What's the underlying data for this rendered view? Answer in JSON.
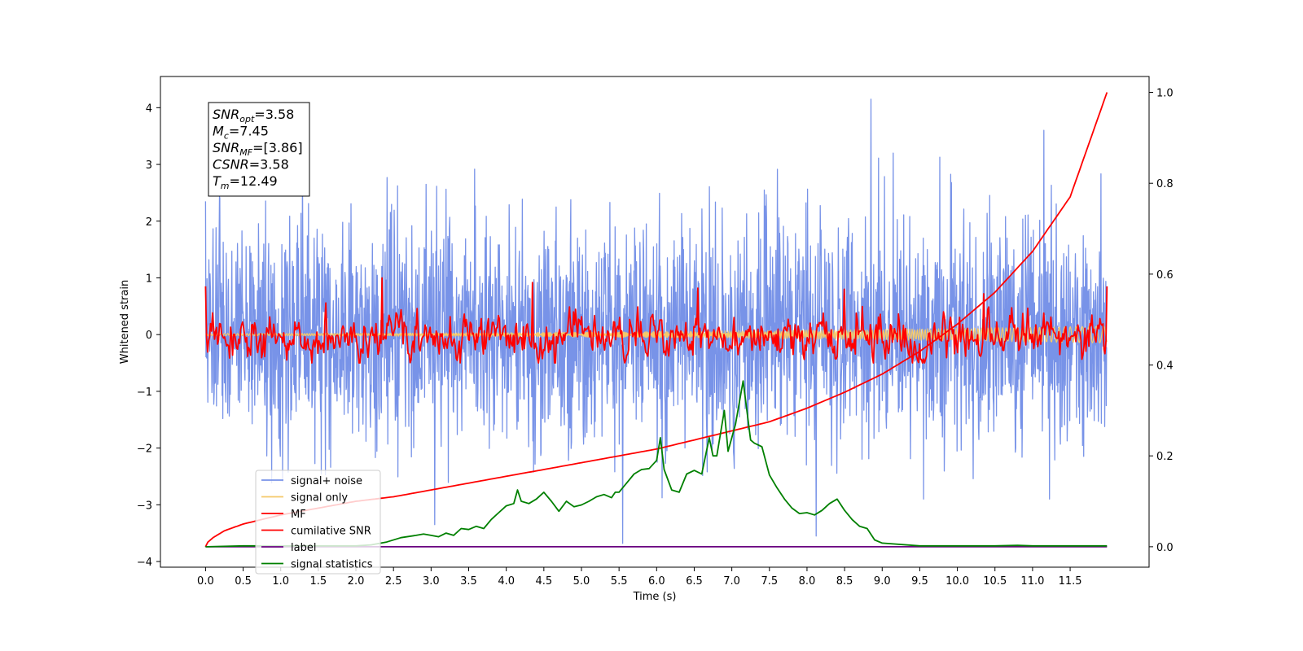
{
  "chart_data": {
    "type": "line",
    "xlabel": "Time (s)",
    "ylabel": "Whitened strain",
    "ylim": [
      -4.1,
      4.55
    ],
    "y2lim": [
      -0.045,
      1.035
    ],
    "xlim": [
      -0.6,
      12.55
    ],
    "x_ticks": [
      0.0,
      0.5,
      1.0,
      1.5,
      2.0,
      2.5,
      3.0,
      3.5,
      4.0,
      4.5,
      5.0,
      5.5,
      6.0,
      6.5,
      7.0,
      7.5,
      8.0,
      8.5,
      9.0,
      9.5,
      10.0,
      10.5,
      11.0,
      11.5
    ],
    "x_tick_labels": [
      "0.0",
      "0.5",
      "1.0",
      "1.5",
      "2.0",
      "2.5",
      "3.0",
      "3.5",
      "4.0",
      "4.5",
      "5.0",
      "5.5",
      "6.0",
      "6.5",
      "7.0",
      "7.5",
      "8.0",
      "8.5",
      "9.0",
      "9.5",
      "10.0",
      "10.5",
      "11.0",
      "11.5"
    ],
    "y_ticks": [
      -4,
      -3,
      -2,
      -1,
      0,
      1,
      2,
      3,
      4
    ],
    "y_tick_labels": [
      "−4",
      "−3",
      "−2",
      "−1",
      "0",
      "1",
      "2",
      "3",
      "4"
    ],
    "y2_ticks": [
      0.0,
      0.2,
      0.4,
      0.6,
      0.8,
      1.0
    ],
    "y2_tick_labels": [
      "0.0",
      "0.2",
      "0.4",
      "0.6",
      "0.8",
      "1.0"
    ],
    "grid": false,
    "legend_position": "lower-left",
    "annotation": {
      "lines": [
        {
          "sym": "SNR",
          "sub": "opt",
          "value": "=3.58"
        },
        {
          "sym": "M",
          "sub": "c",
          "value": "=7.45"
        },
        {
          "sym": "SNR",
          "sub": "MF",
          "value": "=[3.86]"
        },
        {
          "sym": "CSNR",
          "sub": "",
          "value": "=3.58"
        },
        {
          "sym": "T",
          "sub": "m",
          "value": "=12.49"
        }
      ]
    },
    "series": [
      {
        "name": "signal+ noise",
        "color": "#7893e8",
        "axis": "left",
        "style": "noise",
        "x_range": [
          0.0,
          11.99
        ],
        "mean": 0.0,
        "std": 1.0,
        "peaks": [
          [
            0.0,
            2.35
          ],
          [
            8.85,
            4.15
          ],
          [
            11.15,
            3.6
          ],
          [
            5.55,
            -3.68
          ],
          [
            8.12,
            -3.55
          ],
          [
            3.05,
            -3.35
          ]
        ]
      },
      {
        "name": "signal only",
        "color": "#f5c96a",
        "axis": "left",
        "style": "chirp",
        "x_range": [
          0.0,
          11.99
        ],
        "amplitude_start": 0.02,
        "amplitude_end": 0.15
      },
      {
        "name": "MF",
        "color": "#ff0000",
        "axis": "left",
        "style": "mf",
        "x_range": [
          0.0,
          11.99
        ],
        "mean": -0.05,
        "std": 0.22,
        "peaks": [
          [
            0.0,
            0.85
          ],
          [
            11.99,
            0.85
          ],
          [
            2.35,
            1.0
          ],
          [
            4.35,
            0.92
          ],
          [
            8.5,
            0.8
          ],
          [
            6.55,
            0.82
          ],
          [
            10.35,
            0.72
          ]
        ]
      },
      {
        "name": "cumilative SNR",
        "color": "#ff0000",
        "axis": "right",
        "style": "curve",
        "x": [
          0.0,
          0.03,
          0.1,
          0.25,
          0.5,
          1.0,
          1.5,
          2.0,
          2.5,
          3.0,
          3.5,
          4.0,
          4.5,
          5.0,
          5.5,
          6.0,
          6.5,
          7.0,
          7.5,
          8.0,
          8.5,
          9.0,
          9.5,
          10.0,
          10.5,
          11.0,
          11.5,
          11.99
        ],
        "y": [
          0.0,
          0.01,
          0.02,
          0.035,
          0.05,
          0.07,
          0.085,
          0.1,
          0.11,
          0.125,
          0.14,
          0.155,
          0.17,
          0.185,
          0.2,
          0.215,
          0.235,
          0.255,
          0.275,
          0.305,
          0.34,
          0.38,
          0.43,
          0.49,
          0.56,
          0.65,
          0.77,
          1.0
        ]
      },
      {
        "name": "label",
        "color": "#6a0080",
        "axis": "right",
        "style": "curve",
        "x": [
          0.0,
          11.99
        ],
        "y": [
          0.0,
          0.0
        ]
      },
      {
        "name": "signal statistics",
        "color": "#008000",
        "axis": "right",
        "style": "curve",
        "x": [
          0.0,
          0.5,
          1.0,
          1.5,
          2.0,
          2.2,
          2.4,
          2.6,
          2.8,
          2.9,
          3.0,
          3.1,
          3.2,
          3.3,
          3.4,
          3.5,
          3.6,
          3.7,
          3.8,
          3.9,
          4.0,
          4.1,
          4.15,
          4.2,
          4.3,
          4.4,
          4.5,
          4.6,
          4.7,
          4.8,
          4.9,
          5.0,
          5.1,
          5.2,
          5.3,
          5.4,
          5.45,
          5.5,
          5.6,
          5.7,
          5.8,
          5.9,
          6.0,
          6.05,
          6.1,
          6.2,
          6.3,
          6.4,
          6.5,
          6.6,
          6.7,
          6.75,
          6.8,
          6.9,
          6.95,
          7.05,
          7.15,
          7.25,
          7.3,
          7.4,
          7.5,
          7.6,
          7.7,
          7.8,
          7.9,
          8.0,
          8.1,
          8.2,
          8.3,
          8.4,
          8.5,
          8.6,
          8.7,
          8.8,
          8.9,
          9.0,
          9.5,
          10.0,
          10.5,
          10.8,
          11.0,
          11.5,
          11.99
        ],
        "y": [
          0.0,
          0.002,
          0.002,
          0.002,
          0.002,
          0.004,
          0.01,
          0.02,
          0.025,
          0.028,
          0.025,
          0.022,
          0.03,
          0.025,
          0.04,
          0.038,
          0.045,
          0.04,
          0.06,
          0.075,
          0.09,
          0.095,
          0.125,
          0.1,
          0.095,
          0.105,
          0.12,
          0.1,
          0.078,
          0.1,
          0.088,
          0.092,
          0.1,
          0.11,
          0.115,
          0.108,
          0.12,
          0.12,
          0.14,
          0.16,
          0.17,
          0.172,
          0.19,
          0.24,
          0.17,
          0.125,
          0.12,
          0.16,
          0.168,
          0.16,
          0.24,
          0.2,
          0.2,
          0.3,
          0.21,
          0.27,
          0.365,
          0.235,
          0.228,
          0.22,
          0.158,
          0.13,
          0.105,
          0.085,
          0.073,
          0.075,
          0.07,
          0.08,
          0.095,
          0.105,
          0.08,
          0.06,
          0.045,
          0.04,
          0.015,
          0.008,
          0.002,
          0.002,
          0.002,
          0.003,
          0.002,
          0.002,
          0.002
        ]
      }
    ]
  }
}
